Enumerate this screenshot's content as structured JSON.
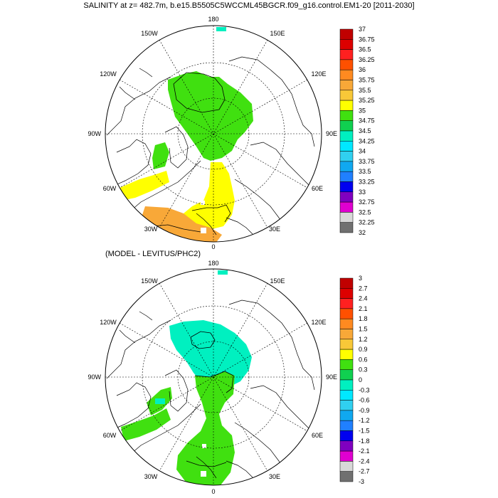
{
  "title": "SALINITY at z= 482.7m, b.e15.B5505C5WCCML45BGCR.f09_g16.control.EM1-20 [2011-2030]",
  "subtitle": "(MODEL - LEVITUS/PHC2)",
  "map_labels": {
    "top": "180",
    "bottom": "0",
    "left": "90W",
    "right": "90E",
    "l150": "150W",
    "r150": "150E",
    "l120": "120W",
    "r120": "120E",
    "l60": "60W",
    "r60": "60E",
    "l30": "30W",
    "r30": "30E"
  },
  "colorbar_top": {
    "labels": [
      "37",
      "36.75",
      "36.5",
      "36.25",
      "36",
      "35.75",
      "35.5",
      "35.25",
      "35",
      "34.75",
      "34.5",
      "34.25",
      "34",
      "33.75",
      "33.5",
      "33.25",
      "33",
      "32.75",
      "32.5",
      "32.25",
      "32"
    ]
  },
  "colorbar_bottom": {
    "labels": [
      "3",
      "2.7",
      "2.4",
      "2.1",
      "1.8",
      "1.5",
      "1.2",
      "0.9",
      "0.6",
      "0.3",
      "0",
      "-0.3",
      "-0.6",
      "-0.9",
      "-1.2",
      "-1.5",
      "-1.8",
      "-2.1",
      "-2.4",
      "-2.7",
      "-3"
    ]
  },
  "palette": [
    "#c00000",
    "#dd0000",
    "#ff2020",
    "#ff5000",
    "#ff8a20",
    "#f8a838",
    "#f8c838",
    "#ffff00",
    "#40e010",
    "#10d050",
    "#00f0c0",
    "#00e8ff",
    "#30d0f0",
    "#10a8f0",
    "#2080ff",
    "#0000f0",
    "#8000c0",
    "#e000d0",
    "#d8d8d8",
    "#707070"
  ]
}
